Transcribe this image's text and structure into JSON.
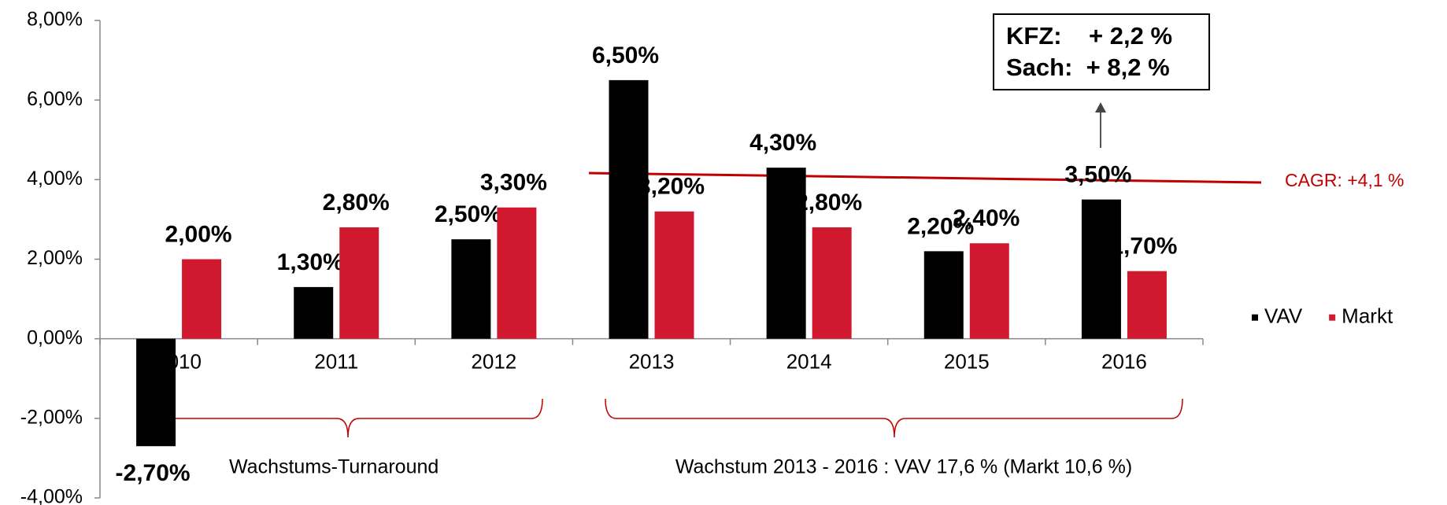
{
  "chart_data": {
    "type": "bar",
    "categories": [
      "2010",
      "2011",
      "2012",
      "2013",
      "2014",
      "2015",
      "2016"
    ],
    "series": [
      {
        "name": "VAV",
        "color": "#000000",
        "values": [
          -2.7,
          1.3,
          2.5,
          6.5,
          4.3,
          2.2,
          3.5
        ],
        "value_labels": [
          "-2,70%",
          "1,30%",
          "2,50%",
          "6,50%",
          "4,30%",
          "2,20%",
          "3,50%"
        ]
      },
      {
        "name": "Markt",
        "color": "#d0192f",
        "values": [
          2.0,
          2.8,
          3.3,
          3.2,
          2.8,
          2.4,
          1.7
        ],
        "value_labels": [
          "2,00%",
          "2,80%",
          "3,30%",
          "3,20%",
          "2,80%",
          "2,40%",
          "1,70%"
        ]
      }
    ],
    "ylim": [
      -4,
      8
    ],
    "yticks": [
      {
        "value": -4,
        "label": "-4,00%"
      },
      {
        "value": -2,
        "label": "-2,00%"
      },
      {
        "value": 0,
        "label": "0,00%"
      },
      {
        "value": 2,
        "label": "2,00%"
      },
      {
        "value": 4,
        "label": "4,00%"
      },
      {
        "value": 6,
        "label": "6,00%"
      },
      {
        "value": 8,
        "label": "8,00%"
      }
    ],
    "legend": "right",
    "annotations": {
      "cagr": "CAGR: +4,1 %",
      "box_lines": [
        "KFZ:    + 2,2 %",
        "Sach:  + 8,2 %"
      ],
      "brace_left": "Wachstums-Turnaround",
      "brace_right": "Wachstum 2013 - 2016 : VAV 17,6 % (Markt 10,6 %)"
    }
  }
}
